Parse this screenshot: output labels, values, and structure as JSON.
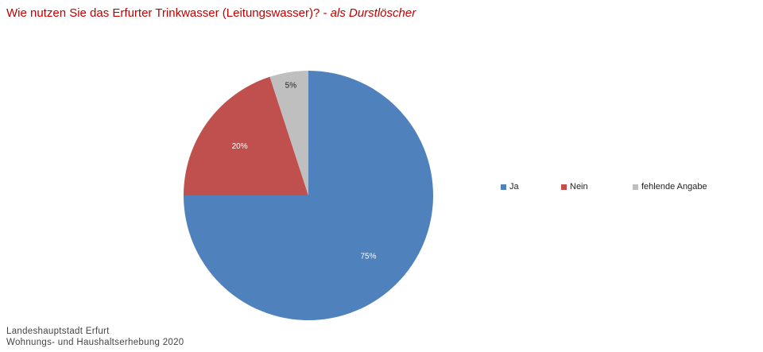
{
  "header": {
    "title_main": "Wie nutzen Sie das Erfurter Trinkwasser (Leitungswasser)? - ",
    "title_sub": "als Durstlöscher"
  },
  "chart_data": {
    "type": "pie",
    "title": "Wie nutzen Sie das Erfurter Trinkwasser (Leitungswasser)? - als Durstlöscher",
    "categories": [
      "Ja",
      "Nein",
      "fehlende Angabe"
    ],
    "values": [
      75,
      20,
      5
    ],
    "value_labels": [
      "75%",
      "20%",
      "5%"
    ],
    "colors": [
      "#4f81bd",
      "#c0504d",
      "#bfbfbf"
    ],
    "label_colors": [
      "#ffffff",
      "#ffffff",
      "#222222"
    ],
    "legend_position": "right"
  },
  "footer": {
    "line1": "Landeshauptstadt Erfurt",
    "line2": "Wohnungs- und Haushaltserhebung 2020"
  }
}
